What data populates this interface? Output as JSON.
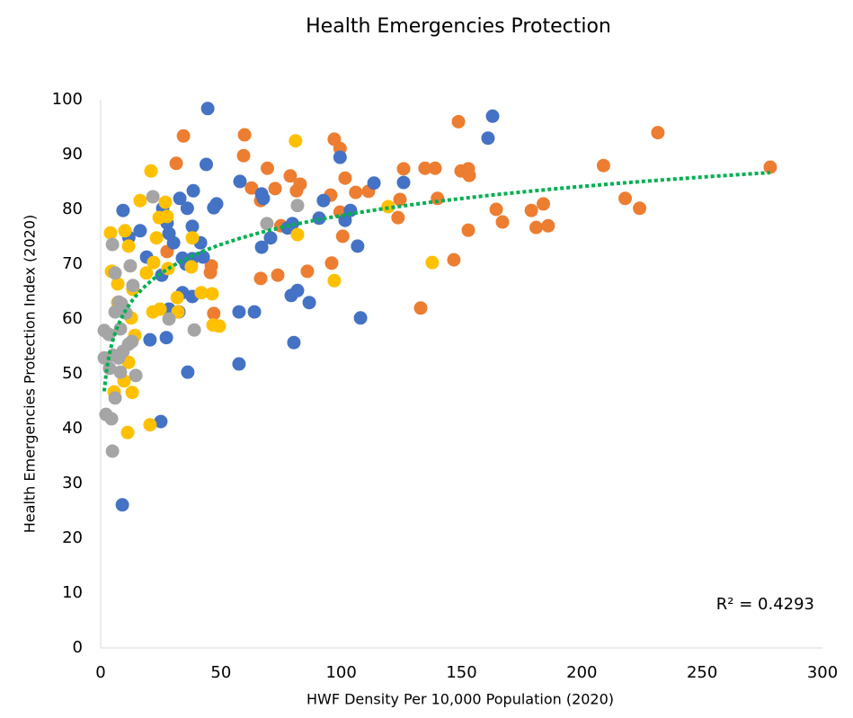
{
  "chart_data": {
    "type": "scatter",
    "title": "Health Emergencies Protection",
    "x_label": "HWF Density Per 10,000 Population (2020)",
    "y_label": "Health Emergencies Protection Index (2020)",
    "xlim": [
      0,
      300
    ],
    "xticks": [
      0,
      50,
      100,
      150,
      200,
      250,
      300
    ],
    "ylim": [
      0,
      100
    ],
    "yticks": [
      0,
      10,
      20,
      30,
      40,
      50,
      60,
      70,
      80,
      90,
      100
    ],
    "grid": false,
    "trendline": {
      "type": "log",
      "color": "#00b050",
      "label": "R² = 0.4293"
    },
    "series": [
      {
        "color": "#ed7d31",
        "x": [
          31.4,
          34.4,
          59.8,
          59.4,
          62.7,
          69.3,
          72.5,
          66.5,
          78.8,
          82.9,
          81.4,
          74.9,
          73.6,
          66.5,
          85.9,
          96,
          95.6,
          97.1,
          99.5,
          101.6,
          99.5,
          100.6,
          106,
          111.3,
          125.9,
          124.4,
          123.6,
          134.8,
          139,
          140,
          133,
          146.8,
          148.7,
          149.8,
          152.8,
          153.2,
          152.8,
          164.4,
          167,
          179,
          184,
          181,
          186,
          209,
          218,
          224,
          231.6,
          278.3,
          46,
          45.6,
          47,
          27.6
        ],
        "values": [
          88.4,
          93.4,
          93.6,
          89.8,
          83.9,
          87.5,
          83.8,
          81.6,
          86.1,
          84.6,
          83.4,
          77,
          68,
          67.4,
          68.7,
          70.2,
          82.6,
          92.8,
          91.1,
          85.7,
          79.5,
          75.1,
          83.1,
          83.3,
          87.4,
          81.8,
          78.5,
          87.5,
          87.5,
          82,
          62,
          70.8,
          96,
          87,
          87.4,
          86.2,
          76.2,
          80,
          77.7,
          79.8,
          81,
          76.7,
          77,
          88,
          82,
          80.2,
          94,
          87.7,
          69.7,
          68.5,
          61,
          72.3
        ]
      },
      {
        "color": "#4472c4",
        "x": [
          44.5,
          43.9,
          38.5,
          32.9,
          36,
          25.8,
          9.3,
          11.7,
          16.4,
          27.6,
          28.4,
          30.3,
          38.1,
          41.5,
          42.6,
          38.1,
          35.5,
          34,
          47,
          48.2,
          19.1,
          25.4,
          34,
          38.1,
          32.5,
          28.4,
          27.3,
          20.5,
          36.2,
          25,
          9,
          57.9,
          57.5,
          63.9,
          57.5,
          66.9,
          67.6,
          66.9,
          70.6,
          79.7,
          77.7,
          81.8,
          79.2,
          86.7,
          80.3,
          92.6,
          90.8,
          99.5,
          103.8,
          101.6,
          106.8,
          108,
          113.6,
          125.9,
          161,
          162.9
        ],
        "values": [
          98.4,
          88.2,
          83.4,
          82,
          80.2,
          80.2,
          79.8,
          74.9,
          76.1,
          77.5,
          75.6,
          73.9,
          76.9,
          73.9,
          71.3,
          71,
          70,
          71.1,
          80.3,
          81,
          71.3,
          68,
          64.8,
          64.1,
          61.3,
          61.8,
          56.6,
          56.2,
          50.3,
          41.3,
          26.1,
          85.1,
          61.3,
          61.3,
          51.8,
          82.8,
          82,
          73.1,
          74.8,
          77.4,
          76.6,
          65.2,
          64.3,
          63,
          55.7,
          81.6,
          78.4,
          89.5,
          79.8,
          78,
          73.3,
          60.2,
          84.8,
          84.9,
          93,
          97
        ]
      },
      {
        "color": "#ffc000",
        "x": [
          20.9,
          26.9,
          16.4,
          27.6,
          24.3,
          4.1,
          10.1,
          23.2,
          11.6,
          38.1,
          22,
          28,
          37.7,
          4.5,
          19,
          7.1,
          13.4,
          41.8,
          46.3,
          31.8,
          24.7,
          32.1,
          21.7,
          12.7,
          46.7,
          49.3,
          14.2,
          11.6,
          9.7,
          13.1,
          11.2,
          20.5,
          81,
          81.8,
          97.1,
          119.5,
          137.8,
          7.1,
          5.6
        ],
        "values": [
          87,
          81.3,
          81.6,
          78.7,
          78.5,
          75.7,
          76.1,
          74.8,
          73.3,
          74.8,
          70.3,
          69.2,
          69.5,
          68.7,
          68.4,
          66.4,
          65.4,
          64.8,
          64.6,
          63.9,
          61.8,
          61.3,
          61.3,
          60.2,
          58.9,
          58.7,
          57,
          52.1,
          48.7,
          46.6,
          39.3,
          40.7,
          92.5,
          75.4,
          67,
          80.5,
          70.3,
          63,
          46.7
        ]
      },
      {
        "color": "#a5a5a5",
        "x": [
          21.7,
          69.1,
          81.8,
          4.9,
          12.3,
          13.4,
          6,
          7.5,
          8.6,
          6,
          10.5,
          1.5,
          3.4,
          8.2,
          11.6,
          9.3,
          5.2,
          7.5,
          1.5,
          3.7,
          8.2,
          14.6,
          2.2,
          4.5,
          6,
          4.9,
          28.4,
          38.9,
          13
        ],
        "values": [
          82.3,
          77.4,
          80.7,
          73.6,
          69.7,
          66.1,
          68.4,
          63.1,
          62.8,
          61.3,
          61.1,
          57.9,
          57.2,
          58.2,
          55.4,
          54.1,
          53.4,
          52.9,
          52.9,
          51,
          50.3,
          49.7,
          42.6,
          41.8,
          45.6,
          35.9,
          60,
          58,
          55.9
        ]
      }
    ]
  }
}
